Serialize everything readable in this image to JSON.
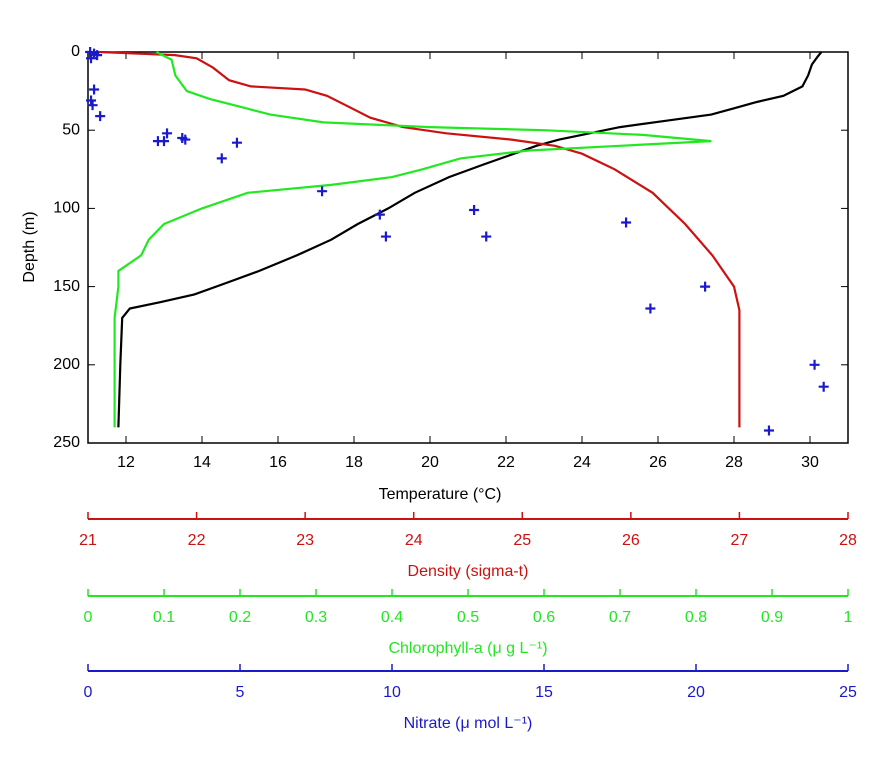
{
  "chart_data": {
    "type": "line",
    "xlabel": "Temperature (°C)",
    "ylabel": "Depth (m)",
    "xlim": [
      11,
      31
    ],
    "xticks": [
      12,
      14,
      16,
      18,
      20,
      22,
      24,
      26,
      28,
      30
    ],
    "ylim": [
      0,
      250
    ],
    "yticks": [
      0,
      50,
      100,
      150,
      200,
      250
    ],
    "y_inverted": true,
    "series": [
      {
        "type": "line",
        "color": "#000000",
        "depth": [
          0,
          3,
          8,
          15,
          22,
          28,
          32,
          36,
          40,
          44,
          48,
          52,
          56,
          60,
          66,
          72,
          80,
          90,
          100,
          110,
          120,
          130,
          140,
          148,
          155,
          160,
          164,
          170,
          200,
          240
        ],
        "values": [
          30.3,
          30.2,
          30.05,
          29.95,
          29.8,
          29.3,
          28.6,
          28.0,
          27.4,
          26.2,
          25.0,
          24.2,
          23.4,
          22.8,
          22.1,
          21.4,
          20.5,
          19.6,
          18.9,
          18.1,
          17.4,
          16.5,
          15.5,
          14.6,
          13.8,
          12.9,
          12.1,
          11.9,
          11.85,
          11.8
        ]
      },
      {
        "type": "line",
        "color": "#cc1111",
        "xlabel": "Density (sigma-t)",
        "xlim": [
          21,
          28
        ],
        "xticks": [
          21,
          22,
          23,
          24,
          25,
          26,
          27,
          28
        ],
        "depth": [
          0,
          2,
          4,
          10,
          18,
          22,
          24,
          28,
          35,
          42,
          48,
          52,
          56,
          60,
          65,
          75,
          90,
          110,
          130,
          150,
          165,
          200,
          240
        ],
        "values": [
          21.1,
          21.8,
          22.0,
          22.15,
          22.3,
          22.5,
          23.0,
          23.2,
          23.4,
          23.6,
          23.9,
          24.3,
          24.9,
          25.3,
          25.55,
          25.85,
          26.2,
          26.5,
          26.75,
          26.95,
          27.0,
          27.0,
          27.0
        ]
      },
      {
        "type": "line",
        "color": "#22e822",
        "xlabel": "Chlorophyll-a (μ g L⁻¹)",
        "xlim": [
          0,
          1
        ],
        "xticks": [
          0,
          0.1,
          0.2,
          0.3,
          0.4,
          0.5,
          0.6,
          0.7,
          0.8,
          0.9,
          1
        ],
        "depth": [
          0,
          5,
          15,
          25,
          30,
          35,
          40,
          45,
          48,
          50,
          53,
          57,
          60,
          63,
          68,
          75,
          80,
          85,
          90,
          100,
          110,
          120,
          130,
          140,
          150,
          170,
          240
        ],
        "values": [
          0.09,
          0.11,
          0.115,
          0.13,
          0.16,
          0.2,
          0.24,
          0.31,
          0.45,
          0.6,
          0.73,
          0.82,
          0.7,
          0.58,
          0.49,
          0.44,
          0.4,
          0.32,
          0.21,
          0.15,
          0.1,
          0.08,
          0.07,
          0.04,
          0.04,
          0.035,
          0.035
        ]
      },
      {
        "type": "scatter",
        "color": "#1a1acc",
        "xlabel": "Nitrate (μ mol L⁻¹)",
        "xlim": [
          0,
          25
        ],
        "xticks": [
          0,
          5,
          10,
          15,
          20,
          25
        ],
        "depth": [
          0,
          1,
          2,
          4,
          24,
          31,
          34,
          41,
          52,
          57,
          57,
          55,
          56,
          68,
          58,
          89,
          104,
          118,
          101,
          118,
          109,
          150,
          164,
          200,
          214,
          242
        ],
        "values": [
          0.07,
          0.2,
          0.3,
          0.1,
          0.2,
          0.1,
          0.15,
          0.4,
          2.6,
          2.3,
          2.5,
          3.1,
          3.2,
          4.4,
          4.9,
          7.7,
          9.6,
          9.8,
          12.7,
          13.1,
          17.7,
          20.3,
          18.5,
          23.9,
          24.2,
          22.4
        ]
      }
    ]
  }
}
